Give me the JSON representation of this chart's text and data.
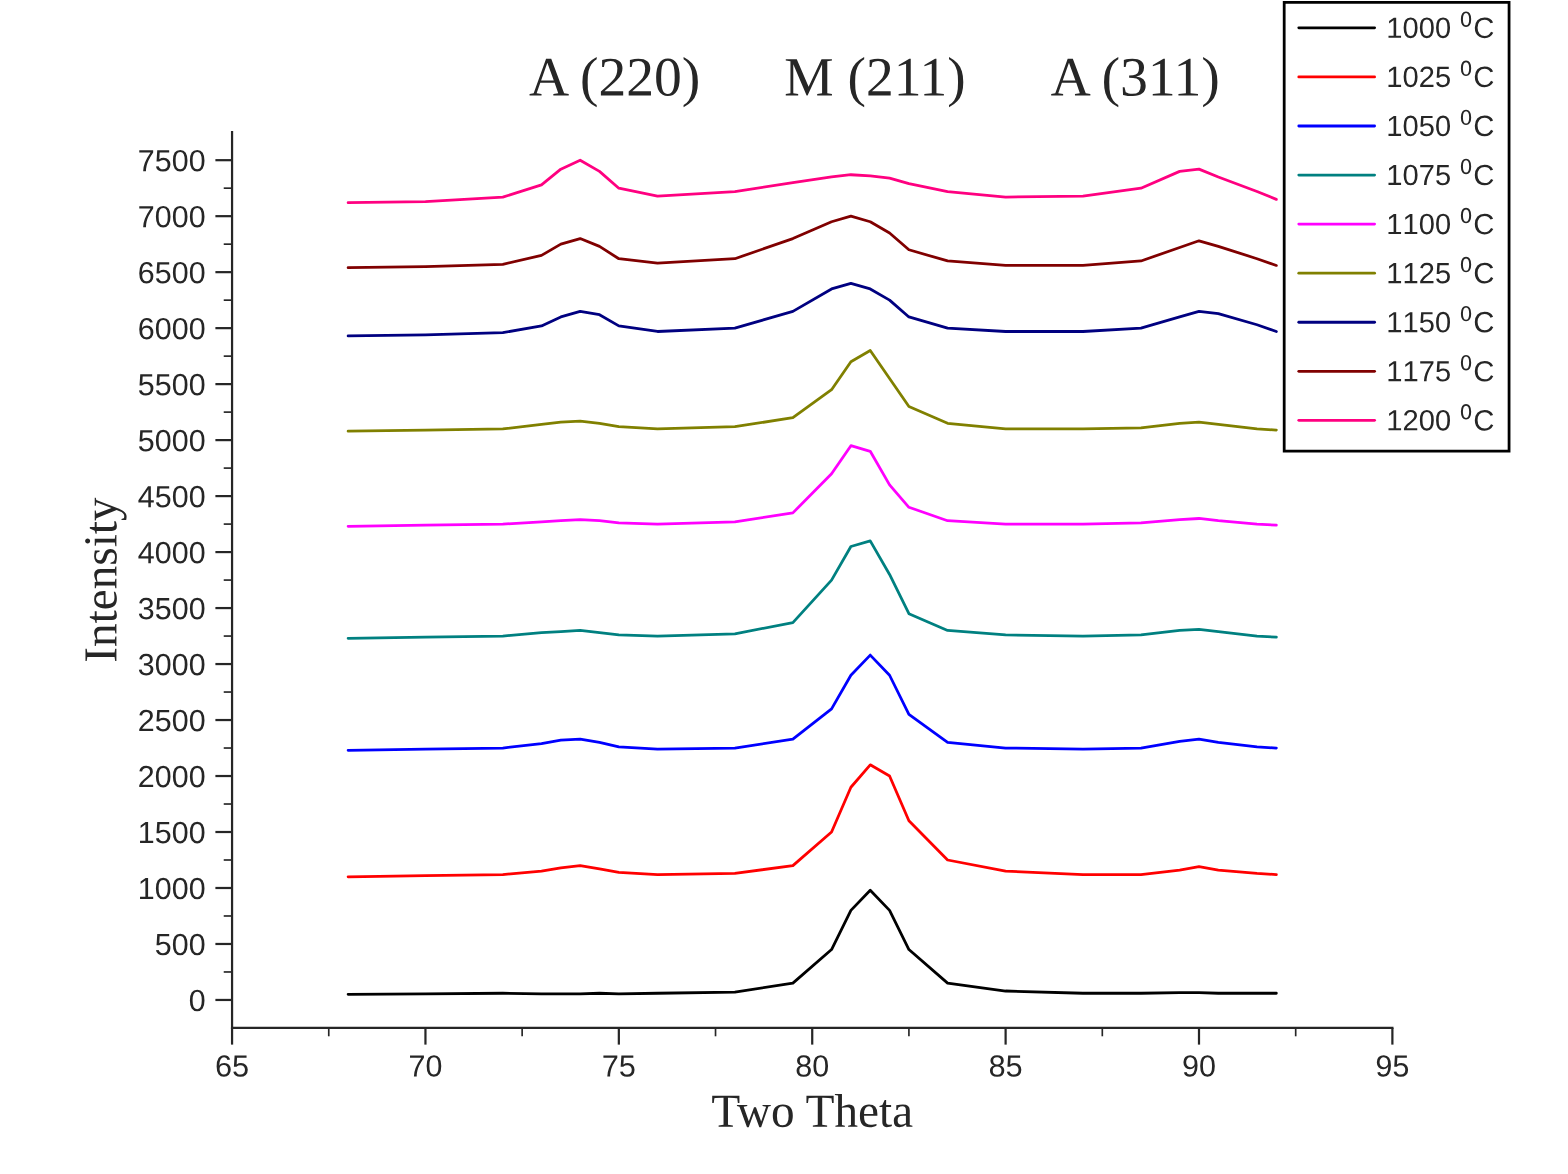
{
  "chart_data": {
    "type": "line",
    "xlabel": "Two Theta",
    "ylabel": "Intensity",
    "x": [
      68,
      70,
      72,
      73,
      73.5,
      74,
      74.5,
      75,
      76,
      78,
      79.5,
      80.5,
      81,
      81.5,
      82,
      82.5,
      83.5,
      85,
      87,
      88.5,
      89.5,
      90,
      90.5,
      91.5,
      92
    ],
    "series": [
      {
        "name": "1000 $^{0}$C",
        "color": "#000000",
        "values": [
          50,
          55,
          60,
          55,
          55,
          55,
          60,
          55,
          60,
          70,
          150,
          450,
          800,
          980,
          800,
          450,
          150,
          80,
          60,
          60,
          65,
          65,
          60,
          60,
          60
        ]
      },
      {
        "name": "1025 $^{0}$C",
        "color": "#ff0000",
        "values": [
          1100,
          1110,
          1120,
          1150,
          1180,
          1200,
          1170,
          1140,
          1120,
          1130,
          1200,
          1500,
          1900,
          2100,
          2000,
          1600,
          1250,
          1150,
          1120,
          1120,
          1160,
          1190,
          1160,
          1130,
          1120
        ]
      },
      {
        "name": "1050 $^{0}$C",
        "color": "#0000ff",
        "values": [
          2230,
          2240,
          2250,
          2290,
          2320,
          2330,
          2300,
          2260,
          2240,
          2250,
          2330,
          2600,
          2900,
          3080,
          2900,
          2550,
          2300,
          2250,
          2240,
          2250,
          2310,
          2330,
          2300,
          2260,
          2250
        ]
      },
      {
        "name": "1075 $^{0}$C",
        "color": "#008080",
        "values": [
          3230,
          3240,
          3250,
          3280,
          3290,
          3300,
          3280,
          3260,
          3250,
          3270,
          3370,
          3750,
          4050,
          4100,
          3800,
          3450,
          3300,
          3260,
          3250,
          3260,
          3300,
          3310,
          3290,
          3250,
          3240
        ]
      },
      {
        "name": "1100 $^{0}$C",
        "color": "#ff00ff",
        "values": [
          4230,
          4240,
          4250,
          4270,
          4280,
          4290,
          4280,
          4260,
          4250,
          4270,
          4350,
          4700,
          4950,
          4900,
          4600,
          4400,
          4280,
          4250,
          4250,
          4260,
          4290,
          4300,
          4280,
          4250,
          4240
        ]
      },
      {
        "name": "1125 $^{0}$C",
        "color": "#808000",
        "values": [
          5080,
          5090,
          5100,
          5140,
          5160,
          5170,
          5150,
          5120,
          5100,
          5120,
          5200,
          5450,
          5700,
          5800,
          5550,
          5300,
          5150,
          5100,
          5100,
          5110,
          5150,
          5160,
          5140,
          5100,
          5090
        ]
      },
      {
        "name": "1150 $^{0}$C",
        "color": "#000080",
        "values": [
          5930,
          5940,
          5960,
          6020,
          6100,
          6150,
          6120,
          6020,
          5970,
          6000,
          6150,
          6350,
          6400,
          6350,
          6250,
          6100,
          6000,
          5970,
          5970,
          6000,
          6100,
          6150,
          6130,
          6030,
          5970
        ]
      },
      {
        "name": "1175 $^{0}$C",
        "color": "#800000",
        "values": [
          6540,
          6550,
          6570,
          6650,
          6750,
          6800,
          6730,
          6620,
          6580,
          6620,
          6800,
          6950,
          7000,
          6950,
          6850,
          6700,
          6600,
          6560,
          6560,
          6600,
          6720,
          6780,
          6730,
          6620,
          6560
        ]
      },
      {
        "name": "1200 $^{0}$C",
        "color": "#ff0080",
        "values": [
          7120,
          7130,
          7170,
          7280,
          7420,
          7500,
          7400,
          7250,
          7180,
          7220,
          7300,
          7350,
          7370,
          7360,
          7340,
          7290,
          7220,
          7170,
          7180,
          7250,
          7400,
          7420,
          7350,
          7220,
          7150
        ]
      }
    ],
    "annotations": [
      "A (220)",
      "M (211)",
      "A (311)"
    ],
    "xlim": [
      65,
      95
    ],
    "xticks": [
      65,
      70,
      75,
      80,
      85,
      90,
      95
    ],
    "ylim": [
      -250,
      7750
    ],
    "yticks": [
      0,
      500,
      1000,
      1500,
      2000,
      2500,
      3000,
      3500,
      4000,
      4500,
      5000,
      5500,
      6000,
      6500,
      7000,
      7500
    ],
    "grid": false,
    "legend": "top right",
    "marker": "none",
    "line_style": "solid"
  }
}
